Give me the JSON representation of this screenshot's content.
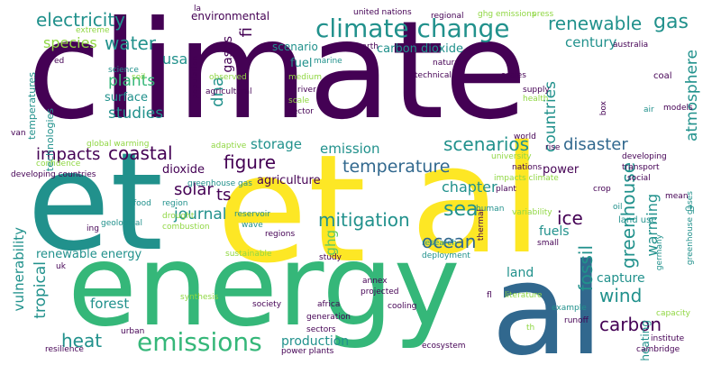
{
  "words": {
    "climate": "climate",
    "et1": "et",
    "al1": "al",
    "energy": "energy",
    "et2": "et",
    "al2": "al",
    "climate_change": "climate change",
    "emissions": "emissions",
    "electricity": "electricity",
    "renewable": "renewable",
    "gas": "gas",
    "water": "water",
    "species": "species",
    "usa": "usa",
    "plants": "plants",
    "studies": "studies",
    "figure": "figure",
    "coastal": "coastal",
    "impacts": "impacts",
    "solar": "solar",
    "ts": "ts",
    "journal": "journal",
    "mitigation": "mitigation",
    "ocean": "ocean",
    "sea": "sea",
    "temperature": "temperature",
    "scenarios": "scenarios",
    "countries": "countries",
    "disaster": "disaster",
    "chapter": "chapter",
    "ghg": "ghg",
    "ice": "ice",
    "wind": "wind",
    "carbon": "carbon",
    "heat": "heat",
    "greenhouse": "greenhouse",
    "warming": "warming",
    "fossil": "fossil",
    "atmosphere": "atmosphere",
    "century": "century",
    "dna": "dna",
    "gases": "gases",
    "fi": "fi",
    "storage": "storage",
    "emission": "emission",
    "agriculture": "agriculture",
    "dioxide": "dioxide",
    "renewable_energy": "renewable energy",
    "tropical": "tropical",
    "vulnerability": "vulnerability",
    "production": "production",
    "forest": "forest",
    "capture": "capture",
    "land": "land",
    "fuels": "fuels",
    "power": "power",
    "surface": "surface",
    "technologies": "technologies",
    "temperatures": "temperatures",
    "environmental": "environmental",
    "scenario": "scenario",
    "carbon_dioxide": "carbon dioxide",
    "fuel": "fuel",
    "heating": "heating",
    "united_nations": "united nations",
    "regional": "regional",
    "ghg_emissions": "ghg emissions",
    "press": "press",
    "extreme": "extreme",
    "la": "la",
    "earth": "earth",
    "marine": "marine",
    "natural": "natural",
    "australia": "australia",
    "scales": "scales",
    "science": "science",
    "population": "population",
    "soil": "soil",
    "observed": "observed",
    "medium": "medium",
    "technical": "technical",
    "coal": "coal",
    "agricultural": "agricultural",
    "river": "river",
    "scale": "scale",
    "sector": "sector",
    "supply": "supply",
    "health": "health",
    "air": "air",
    "models": "models",
    "box": "box",
    "van": "van",
    "global_warming": "global warming",
    "adaptive": "adaptive",
    "world": "world",
    "rise": "rise",
    "developing": "developing",
    "transport": "transport",
    "confidence": "confidence",
    "university": "university",
    "nations": "nations",
    "impacts_climate": "impacts climate",
    "developing_countries": "developing countries",
    "greenhouse_gas": "greenhouse gas",
    "plant": "plant",
    "social": "social",
    "crop": "crop",
    "mean": "mean",
    "food": "food",
    "region": "region",
    "reservoir": "reservoir",
    "geological": "geological",
    "drought": "drought",
    "combustion": "combustion",
    "wave": "wave",
    "variability": "variability",
    "oil": "oil",
    "human": "human",
    "land_use": "land use",
    "greenhouse_gases": "greenhouse gases",
    "ing": "ing",
    "sustainable": "sustainable",
    "regions": "regions",
    "research": "research",
    "small": "small",
    "uk": "uk",
    "thermal": "thermal",
    "study": "study",
    "deployment": "deployment",
    "germany": "germany",
    "annex": "annex",
    "fl": "fl",
    "literature": "literature",
    "synthesis": "synthesis",
    "projected": "projected",
    "society": "society",
    "africa": "africa",
    "cooling": "cooling",
    "example": "example",
    "generation": "generation",
    "capacity": "capacity",
    "runoff": "runoff",
    "institute": "institute",
    "urban": "urban",
    "sectors": "sectors",
    "resilience": "resilience",
    "power_plants": "power plants",
    "ecosystem": "ecosystem",
    "cambridge": "cambridge",
    "ed": "ed",
    "th": "th",
    "ch": "ch"
  }
}
